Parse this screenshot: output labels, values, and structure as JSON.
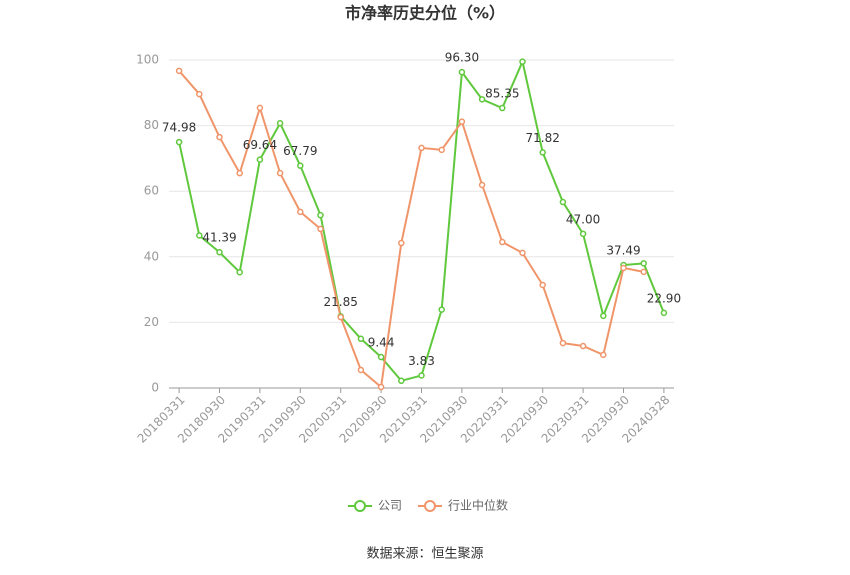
{
  "chart_data": {
    "type": "line",
    "title": "市净率历史分位（%）",
    "source": "数据来源：恒生聚源",
    "categories": [
      "20180331",
      null,
      "20180930",
      null,
      "20190331",
      null,
      "20190930",
      null,
      "20200331",
      null,
      "20200930",
      null,
      "20210331",
      null,
      "20210930",
      null,
      "20220331",
      null,
      "20220930",
      null,
      "20230331",
      null,
      "20230930",
      null,
      "20240328"
    ],
    "series": [
      {
        "name": "公司",
        "color": "#5fc83c",
        "values": [
          74.98,
          46.5,
          41.39,
          35.3,
          69.64,
          80.7,
          67.79,
          52.7,
          21.85,
          15.0,
          9.44,
          2.2,
          3.83,
          23.9,
          96.3,
          88.0,
          85.35,
          99.5,
          71.82,
          56.7,
          47.0,
          22.0,
          37.49,
          38.0,
          22.9
        ],
        "value_labels": [
          "74.98",
          null,
          "41.39",
          null,
          "69.64",
          null,
          "67.79",
          null,
          "21.85",
          null,
          "9.44",
          null,
          "3.83",
          null,
          "96.30",
          null,
          "85.35",
          null,
          "71.82",
          null,
          "47.00",
          null,
          "37.49",
          null,
          "22.90"
        ]
      },
      {
        "name": "行业中位数",
        "color": "#f0956a",
        "values": [
          96.7,
          89.6,
          76.5,
          65.5,
          85.4,
          65.5,
          53.7,
          48.5,
          21.6,
          5.5,
          0.3,
          44.2,
          73.2,
          72.6,
          81.2,
          61.9,
          44.5,
          41.2,
          31.4,
          13.7,
          12.8,
          10.1,
          36.6,
          35.4,
          null
        ]
      }
    ],
    "ylim": [
      0,
      100
    ],
    "yticks": [
      0,
      20,
      40,
      60,
      80,
      100
    ],
    "grid": true
  }
}
